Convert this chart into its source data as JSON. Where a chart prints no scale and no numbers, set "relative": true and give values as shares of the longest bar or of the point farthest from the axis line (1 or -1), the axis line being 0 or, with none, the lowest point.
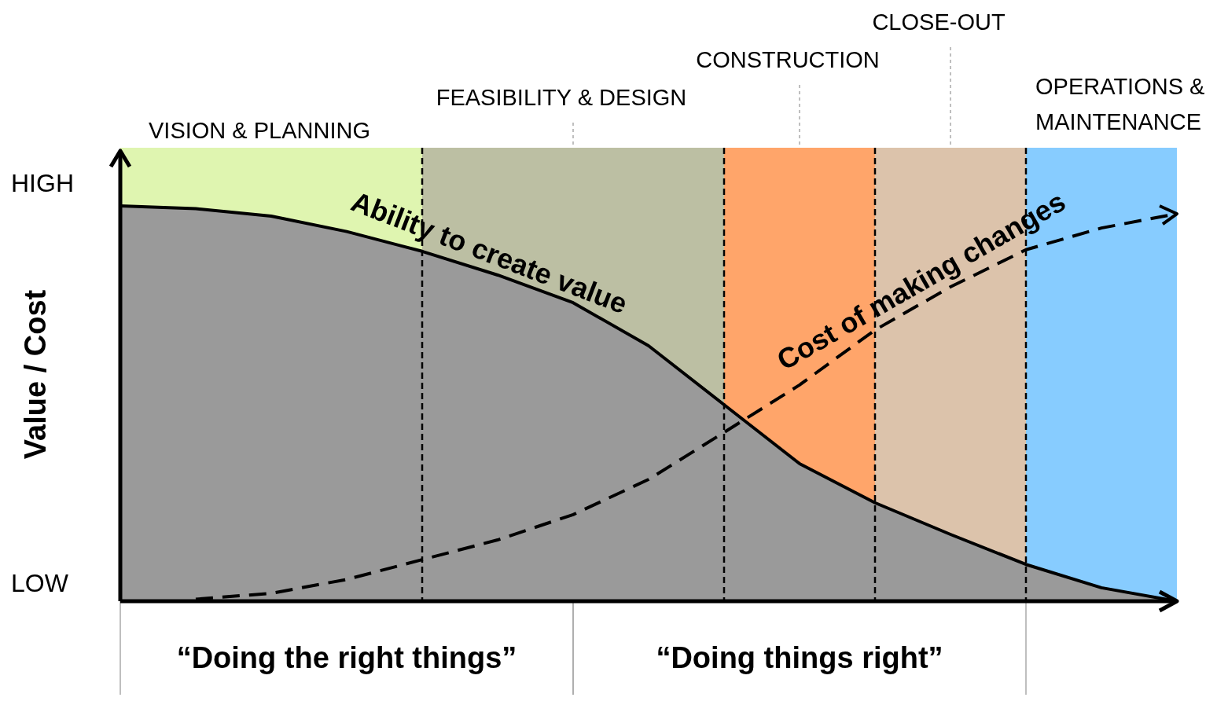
{
  "chart_data": {
    "type": "line",
    "relative": true,
    "ylabel": "Value / Cost",
    "annotations": [
      "HIGH",
      "LOW",
      "VISION & PLANNING",
      "FEASIBILITY & DESIGN",
      "CONSTRUCTION",
      "CLOSE-OUT",
      "OPERATIONS & MAINTENANCE",
      "“Doing the right things”",
      "“Doing things right”"
    ],
    "grid": "x",
    "categories": [
      null,
      null,
      null,
      null,
      null,
      null,
      null,
      null,
      null,
      null,
      null,
      null,
      null,
      null,
      null
    ],
    "series": [
      {
        "name": "Ability to create value",
        "type": "area",
        "color": "#000000",
        "line_style": "solid",
        "values": [
          1,
          0.993,
          0.974,
          0.935,
          0.885,
          0.825,
          0.755,
          0.646,
          0.497,
          0.348,
          0.249,
          0.169,
          0.093,
          0.034,
          0
        ]
      },
      {
        "name": "Cost of making changes",
        "type": "line",
        "color": "#000000",
        "line_style": "dashed",
        "values": [
          null,
          0.005,
          0.02,
          0.055,
          0.105,
          0.155,
          0.219,
          0.308,
          0.427,
          0.547,
          0.686,
          0.795,
          0.889,
          0.944,
          0.98
        ]
      }
    ]
  }
}
